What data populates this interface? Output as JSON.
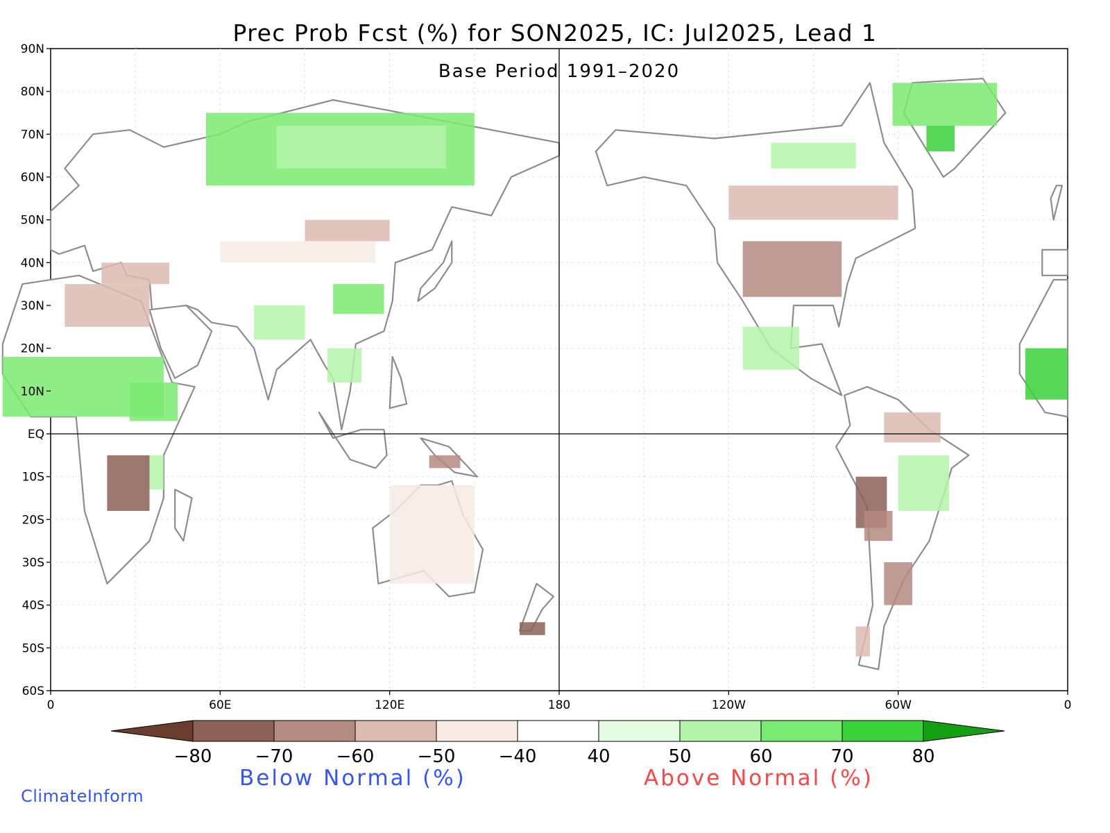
{
  "title": "Prec Prob Fcst (%) for SON2025, IC: Jul2025, Lead 1",
  "subtitle": "Base Period 1991–2020",
  "lat_labels": [
    "90N",
    "80N",
    "70N",
    "60N",
    "50N",
    "40N",
    "30N",
    "20N",
    "10N",
    "EQ",
    "10S",
    "20S",
    "30S",
    "40S",
    "50S",
    "60S"
  ],
  "lon_labels": [
    "0",
    "60E",
    "120E",
    "180",
    "120W",
    "60W",
    "0"
  ],
  "colorbar": {
    "ticks": [
      "−80",
      "−70",
      "−60",
      "−50",
      "−40",
      "40",
      "50",
      "60",
      "70",
      "80"
    ],
    "colors": [
      "#6b3d2f",
      "#8c6055",
      "#b58a80",
      "#dcbbb0",
      "#f7ebe4",
      "#ffffff",
      "#e3fbe0",
      "#b2f5a8",
      "#7aea70",
      "#3ad13a",
      "#12a012"
    ],
    "below_label": "Below Normal (%)",
    "above_label": "Above Normal (%)"
  },
  "credit": "ClimateInform",
  "colors": {
    "coast": "#8c8c8c",
    "frame": "#000000",
    "grid": "#b4b4b4"
  }
}
